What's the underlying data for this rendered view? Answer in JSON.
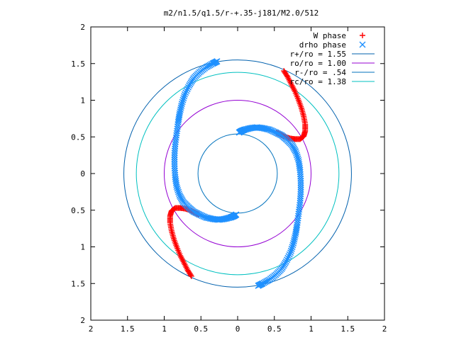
{
  "chart_data": {
    "type": "scatter",
    "title": "m2/n1.5/q1.5/r-+.35-j181/M2.0/512",
    "xlabel": "",
    "ylabel": "",
    "xlim": [
      -2,
      2
    ],
    "ylim": [
      -2,
      2
    ],
    "x_tick_labels": [
      "2",
      "1.5",
      "1",
      "0.5",
      "0",
      "0.5",
      "1",
      "1.5",
      "2"
    ],
    "y_tick_labels": [
      "2",
      "1.5",
      "1",
      "0.5",
      "0",
      "0.5",
      "1",
      "1.5",
      "2"
    ],
    "grid": false,
    "legend_position": "top-right",
    "series": [
      {
        "name": "W phase",
        "marker": "plus",
        "color": "#ff0000",
        "x": [
          0.63,
          0.68,
          0.73,
          0.78,
          0.83,
          0.87,
          0.9,
          0.92,
          0.92,
          0.9,
          0.85,
          0.78,
          0.71,
          0.65,
          0.59,
          0.53,
          -0.63,
          -0.68,
          -0.73,
          -0.78,
          -0.83,
          -0.87,
          -0.9,
          -0.92,
          -0.92,
          -0.9,
          -0.85,
          -0.78,
          -0.71,
          -0.65,
          -0.59,
          -0.53
        ],
        "y": [
          1.4,
          1.32,
          1.22,
          1.12,
          1.0,
          0.89,
          0.78,
          0.67,
          0.58,
          0.51,
          0.47,
          0.47,
          0.48,
          0.5,
          0.53,
          0.56,
          -1.4,
          -1.32,
          -1.22,
          -1.12,
          -1.0,
          -0.89,
          -0.78,
          -0.67,
          -0.58,
          -0.51,
          -0.47,
          -0.47,
          -0.48,
          -0.5,
          -0.53,
          -0.56
        ]
      },
      {
        "name": "drho phase",
        "marker": "cross",
        "color": "#1e90ff",
        "x": [
          -0.28,
          -0.34,
          -0.43,
          -0.52,
          -0.6,
          -0.66,
          -0.72,
          -0.76,
          -0.79,
          -0.81,
          -0.83,
          -0.85,
          -0.86,
          -0.86,
          -0.85,
          -0.83,
          -0.79,
          -0.74,
          -0.67,
          -0.6,
          -0.52,
          -0.43,
          -0.34,
          -0.26,
          -0.18,
          -0.1,
          -0.05,
          -0.02,
          0.28,
          0.34,
          0.43,
          0.52,
          0.6,
          0.66,
          0.72,
          0.76,
          0.79,
          0.81,
          0.83,
          0.85,
          0.86,
          0.86,
          0.85,
          0.83,
          0.79,
          0.74,
          0.67,
          0.6,
          0.52,
          0.43,
          0.34,
          0.26,
          0.18,
          0.1,
          0.05,
          0.02
        ],
        "y": [
          1.53,
          1.5,
          1.45,
          1.38,
          1.3,
          1.2,
          1.08,
          0.95,
          0.82,
          0.7,
          0.55,
          0.4,
          0.25,
          0.1,
          -0.05,
          -0.18,
          -0.3,
          -0.39,
          -0.46,
          -0.52,
          -0.56,
          -0.6,
          -0.62,
          -0.63,
          -0.62,
          -0.6,
          -0.58,
          -0.56,
          -1.53,
          -1.5,
          -1.45,
          -1.38,
          -1.3,
          -1.2,
          -1.08,
          -0.95,
          -0.82,
          -0.7,
          -0.55,
          -0.4,
          -0.25,
          -0.1,
          0.05,
          0.18,
          0.3,
          0.39,
          0.46,
          0.52,
          0.56,
          0.6,
          0.62,
          0.63,
          0.62,
          0.6,
          0.58,
          0.56
        ]
      },
      {
        "name": "r+/ro = 1.55",
        "type": "circle",
        "radius": 1.55,
        "color": "#0060ad"
      },
      {
        "name": "ro/ro = 1.00",
        "type": "circle",
        "radius": 1.0,
        "color": "#9400d3"
      },
      {
        "name": "r-/ro = .54",
        "type": "circle",
        "radius": 0.54,
        "color": "#0072bd"
      },
      {
        "name": "rc/ro = 1.38",
        "type": "circle",
        "radius": 1.38,
        "color": "#00c0c0"
      }
    ]
  }
}
